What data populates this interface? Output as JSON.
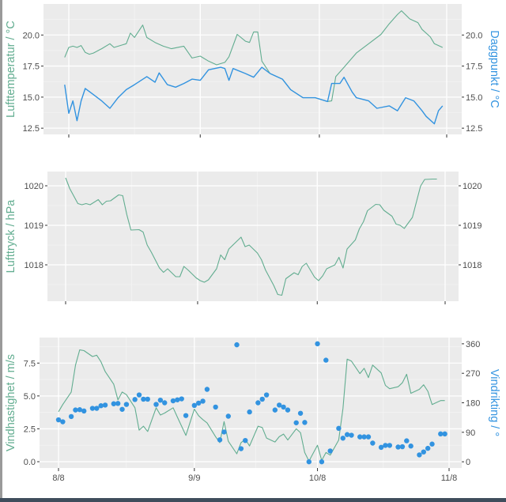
{
  "colors": {
    "green": "#62ad90",
    "blue": "#3293e0",
    "panel": "#ebebeb",
    "grid": "#ffffff",
    "tick_text": "#4d4d4d"
  },
  "chart_data": [
    {
      "type": "line",
      "ylabel_left": "Lufttemperatur / °C",
      "ylabel_right": "Daggpunkt / °C",
      "ylim": [
        12.0,
        22.5
      ],
      "yticks": [
        "12.5",
        "15.0",
        "17.5",
        "20.0"
      ],
      "xticks": [
        "8/8",
        "9/9",
        "10/8",
        "11/8"
      ],
      "xtick_labels_shown": false,
      "grid": true,
      "series": [
        {
          "axis": "left",
          "color": "green",
          "x": [
            "8/7",
            "8/8",
            "8/9",
            "8/10",
            "8/11",
            "8/12",
            "8/13",
            "8/14",
            "8/16",
            "8/18",
            "8/19",
            "8/21",
            "8/22",
            "8/23",
            "8/24",
            "8/26",
            "8/27",
            "8/29",
            "8/31",
            "9/2",
            "9/5",
            "9/7",
            "9/9",
            "9/11",
            "9/13",
            "9/15",
            "9/16",
            "9/18",
            "9/20",
            "9/21",
            "9/22",
            "9/23",
            "9/24",
            "9/26",
            "9/29",
            "10/1",
            "10/4",
            "10/7",
            "10/10",
            "10/11",
            "10/12",
            "10/14",
            "10/17",
            "10/20",
            "10/23",
            "10/25",
            "10/27",
            "10/28",
            "10/30",
            "11/1",
            "11/2",
            "11/4",
            "11/5",
            "11/7"
          ],
          "y": [
            18.2,
            19.0,
            19.1,
            19.0,
            19.15,
            18.6,
            18.45,
            18.55,
            18.9,
            19.3,
            19.0,
            19.2,
            19.3,
            20.15,
            19.8,
            20.8,
            19.8,
            19.4,
            19.1,
            18.9,
            19.1,
            18.15,
            18.3,
            17.9,
            17.6,
            17.8,
            18.25,
            20.05,
            19.5,
            19.4,
            20.25,
            20.25,
            17.9,
            16.9,
            16.45,
            15.6,
            14.95,
            14.95,
            14.65,
            14.7,
            16.65,
            17.4,
            18.55,
            19.3,
            20.05,
            20.9,
            21.65,
            21.95,
            21.3,
            21.0,
            20.45,
            19.85,
            19.3,
            19.0
          ]
        },
        {
          "axis": "right",
          "color": "blue",
          "x": [
            "8/7",
            "8/8",
            "8/9",
            "8/10",
            "8/11",
            "8/12",
            "8/14",
            "8/16",
            "8/18",
            "8/20",
            "8/22",
            "8/24",
            "8/27",
            "8/29",
            "8/30",
            "9/1",
            "9/3",
            "9/5",
            "9/7",
            "9/9",
            "9/11",
            "9/14",
            "9/15",
            "9/16",
            "9/17",
            "9/20",
            "9/22",
            "9/24",
            "9/26",
            "9/29",
            "10/1",
            "10/4",
            "10/7",
            "10/10",
            "10/11",
            "10/13",
            "10/14",
            "10/16",
            "10/17",
            "10/20",
            "10/22",
            "10/25",
            "10/27",
            "10/29",
            "10/31",
            "11/2",
            "11/3",
            "11/5",
            "11/6",
            "11/7"
          ],
          "y": [
            16.0,
            13.7,
            14.7,
            13.1,
            14.7,
            15.7,
            15.2,
            14.7,
            14.1,
            14.95,
            15.6,
            16.0,
            16.65,
            16.2,
            16.95,
            16.0,
            15.8,
            16.1,
            16.45,
            16.35,
            17.2,
            17.4,
            17.3,
            16.35,
            17.3,
            16.9,
            16.6,
            17.4,
            16.9,
            16.45,
            15.6,
            14.95,
            14.95,
            14.65,
            16.1,
            16.1,
            16.6,
            15.4,
            14.95,
            14.7,
            14.1,
            14.3,
            13.9,
            14.95,
            14.7,
            13.9,
            13.45,
            12.85,
            13.9,
            14.3
          ]
        }
      ]
    },
    {
      "type": "line",
      "ylabel_left": "Lufttryck / hPa",
      "ylim": [
        1017.08,
        1020.36
      ],
      "yticks": [
        "1018",
        "1019",
        "1020"
      ],
      "xticks": [
        "8/8",
        "9/9",
        "10/8",
        "11/8"
      ],
      "xtick_labels_shown": false,
      "grid": true,
      "series": [
        {
          "axis": "left",
          "color": "green",
          "y": [
            1020.2,
            1019.93,
            1019.55,
            1019.52,
            1019.55,
            1019.52,
            1019.65,
            1019.52,
            1019.61,
            1019.62,
            1019.77,
            1019.75,
            1019.27,
            1018.88,
            1018.89,
            1018.83,
            1018.5,
            1018.32,
            1017.92,
            1017.81,
            1017.9,
            1017.7,
            1017.7,
            1017.96,
            1017.87,
            1017.67,
            1017.6,
            1017.56,
            1017.62,
            1017.9,
            1018.25,
            1018.13,
            1018.4,
            1018.6,
            1018.7,
            1018.46,
            1018.5,
            1018.3,
            1018.13,
            1017.87,
            1017.48,
            1017.25,
            1017.23,
            1017.65,
            1017.8,
            1017.75,
            1017.96,
            1018.04,
            1017.69,
            1017.6,
            1017.72,
            1017.9,
            1018.0,
            1018.19,
            1017.92,
            1018.4,
            1018.63,
            1018.91,
            1019.09,
            1019.37,
            1019.53,
            1019.52,
            1019.38,
            1019.23,
            1019.03,
            1019.0,
            1018.92,
            1019.2,
            1019.6,
            1019.99,
            1020.16,
            1020.17,
            1020.17
          ]
        }
      ]
    },
    {
      "type": "line+scatter",
      "ylabel_left": "Vindhastighet / m/s",
      "ylabel_right": "Vindrikting / °",
      "ylim": [
        -0.48,
        9.44
      ],
      "ylim_right": [
        -19,
        379
      ],
      "yticks": [
        "0.0",
        "2.5",
        "5.0",
        "7.5"
      ],
      "yticks_right": [
        "0",
        "90",
        "180",
        "270",
        "360"
      ],
      "xticks": [
        "8/8",
        "9/9",
        "10/8",
        "11/8"
      ],
      "xtick_labels_shown": true,
      "grid": true,
      "x": [
        "8/8",
        "8/9",
        "8/11",
        "8/12",
        "8/13",
        "8/14",
        "8/16",
        "8/17",
        "8/18",
        "8/19",
        "8/21",
        "8/22",
        "8/23",
        "8/24",
        "8/26",
        "8/27",
        "8/28",
        "8/29",
        "8/31",
        "9/1",
        "9/2",
        "9/4",
        "9/5",
        "9/6",
        "9/7",
        "9/9",
        "9/10",
        "9/11",
        "9/12",
        "9/14",
        "9/15",
        "9/16",
        "9/17",
        "9/19",
        "9/20",
        "9/21",
        "9/22",
        "9/24",
        "9/25",
        "9/26",
        "9/28",
        "9/29",
        "9/30",
        "10/1",
        "10/3",
        "10/4",
        "10/5",
        "10/6",
        "10/8",
        "10/9",
        "10/10",
        "10/11",
        "10/13",
        "10/14",
        "10/15",
        "10/16",
        "10/18",
        "10/19",
        "10/20",
        "10/21",
        "10/23",
        "10/24",
        "10/25",
        "10/27",
        "10/28",
        "10/29",
        "10/30",
        "11/1",
        "11/2",
        "11/3",
        "11/4",
        "11/6",
        "11/7"
      ],
      "series": [
        {
          "axis": "left",
          "kind": "line",
          "color": "green",
          "y": [
            3.8,
            4.35,
            5.3,
            7.35,
            8.5,
            8.45,
            8.0,
            8.1,
            7.6,
            6.85,
            5.9,
            4.7,
            5.3,
            5.1,
            4.1,
            2.4,
            2.7,
            2.3,
            4.1,
            3.55,
            3.7,
            4.1,
            3.4,
            2.7,
            2.0,
            4.0,
            3.5,
            3.2,
            2.95,
            1.9,
            1.45,
            3.05,
            1.55,
            0.6,
            1.45,
            1.7,
            1.2,
            2.7,
            2.6,
            1.8,
            1.5,
            1.9,
            2.1,
            1.65,
            2.5,
            2.2,
            0.7,
            0.05,
            1.25,
            0.1,
            0.7,
            0.5,
            1.65,
            4.05,
            7.8,
            7.65,
            6.7,
            7.1,
            6.4,
            7.35,
            6.75,
            5.8,
            5.55,
            5.7,
            6.0,
            6.65,
            5.2,
            5.5,
            5.85,
            5.35,
            4.35,
            4.65,
            4.65
          ]
        },
        {
          "axis": "right",
          "kind": "scatter",
          "color": "blue",
          "y": [
            128,
            122,
            138,
            158,
            159,
            155,
            163,
            163,
            171,
            173,
            177,
            178,
            160,
            175,
            190,
            204,
            191,
            191,
            175,
            188,
            180,
            186,
            189,
            192,
            141,
            172,
            179,
            185,
            221,
            167,
            67,
            91,
            139,
            357,
            40,
            65,
            152,
            180,
            191,
            204,
            158,
            173,
            167,
            158,
            119,
            148,
            120,
            0,
            360,
            0,
            310,
            33,
            102,
            72,
            83,
            81,
            76,
            76,
            76,
            57,
            44,
            50,
            50,
            45,
            46,
            64,
            48,
            21,
            30,
            41,
            54,
            85,
            85
          ]
        }
      ]
    }
  ]
}
